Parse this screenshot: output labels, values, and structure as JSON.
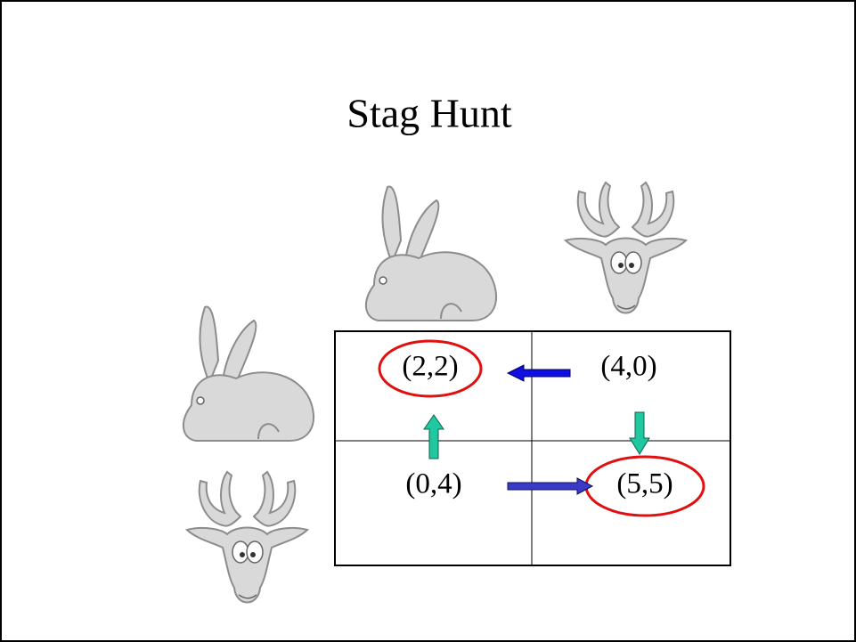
{
  "title": "Stag Hunt",
  "matrix": {
    "rows": [
      [
        "(2,2)",
        "(4,0)"
      ],
      [
        "(0,4)",
        "(5,5)"
      ]
    ]
  }
}
